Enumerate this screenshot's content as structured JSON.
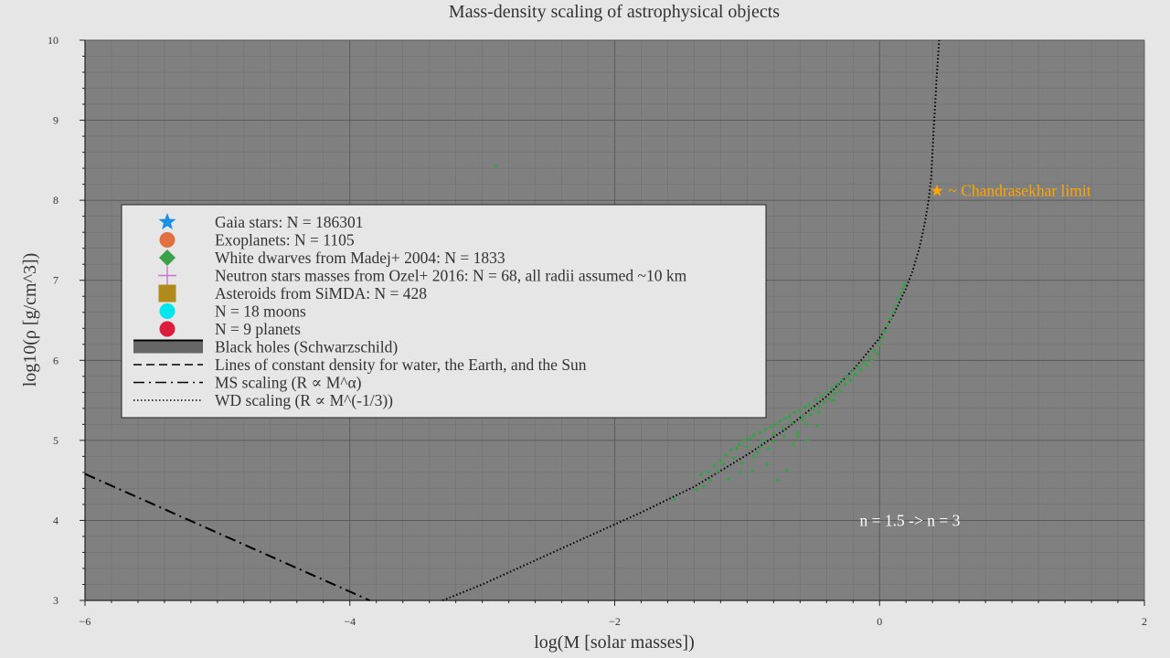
{
  "chart_data": {
    "type": "scatter",
    "title": "Mass-density scaling of astrophysical objects",
    "xlabel": "log(M [solar masses])",
    "ylabel": "log10(ρ [g/cm^3])",
    "xlim": [
      -6,
      2
    ],
    "ylim": [
      3,
      10
    ],
    "xscale": "linear",
    "yscale": "linear",
    "grid": true,
    "xticks": [
      -6,
      -4,
      -2,
      0,
      2
    ],
    "yticks": [
      3,
      4,
      5,
      6,
      7,
      8,
      9,
      10
    ],
    "legend_position": "center-left",
    "legend": [
      {
        "label": "Gaia stars: N = 186301",
        "marker": "star",
        "color": "#1b8fe6"
      },
      {
        "label": "Exoplanets: N = 1105",
        "marker": "circle",
        "color": "#e07040"
      },
      {
        "label": "White dwarves from Madej+ 2004: N = 1833",
        "marker": "diamond",
        "color": "#3aa04a"
      },
      {
        "label": "Neutron stars masses from Ozel+ 2016: N = 68, all radii assumed ~10 km",
        "marker": "plus",
        "color": "#d070d0"
      },
      {
        "label": "Asteroids from SiMDA: N = 428",
        "marker": "square",
        "color": "#b08a1a"
      },
      {
        "label": "N = 18 moons",
        "marker": "circle",
        "color": "#00e5ee"
      },
      {
        "label": "N = 9 planets",
        "marker": "circle",
        "color": "#dc1c3c"
      },
      {
        "label": "Black holes (Schwarzschild)",
        "marker": "thick-line",
        "color": "#666666"
      },
      {
        "label": "Lines of constant density for water, the Earth, and the Sun",
        "marker": "dashed-line",
        "color": "#000000"
      },
      {
        "label": "MS scaling (R ∝ M^α)",
        "marker": "dashdot-line",
        "color": "#000000"
      },
      {
        "label": "WD scaling (R ∝ M^(-1/3))",
        "marker": "dotted-line",
        "color": "#000000"
      }
    ],
    "series": [
      {
        "name": "MS scaling (R ∝ M^α)",
        "style": "dashdot",
        "color": "#000000",
        "x": [
          -6.0,
          -3.85
        ],
        "y": [
          4.58,
          3.0
        ]
      },
      {
        "name": "WD scaling (R ∝ M^(-1/3))",
        "style": "dotted",
        "color": "#000000",
        "x": [
          -3.3,
          -3.0,
          -2.6,
          -2.2,
          -1.8,
          -1.4,
          -1.0,
          -0.7,
          -0.4,
          -0.2,
          0.0,
          0.1,
          0.2,
          0.25,
          0.3,
          0.34,
          0.37,
          0.39,
          0.4,
          0.41,
          0.42,
          0.43,
          0.44,
          0.45
        ],
        "y": [
          3.0,
          3.2,
          3.5,
          3.8,
          4.1,
          4.42,
          4.82,
          5.15,
          5.55,
          5.88,
          6.28,
          6.55,
          6.9,
          7.12,
          7.4,
          7.7,
          8.0,
          8.3,
          8.6,
          8.9,
          9.2,
          9.5,
          9.75,
          10.0
        ]
      }
    ],
    "white_dwarfs": {
      "color": "#3aa04a",
      "points": [
        [
          -2.9,
          8.43
        ],
        [
          -1.55,
          4.26
        ],
        [
          -1.38,
          4.38
        ],
        [
          -1.35,
          4.57
        ],
        [
          -1.33,
          4.43
        ],
        [
          -1.3,
          4.6
        ],
        [
          -1.28,
          4.5
        ],
        [
          -1.25,
          4.68
        ],
        [
          -1.22,
          4.62
        ],
        [
          -1.2,
          4.75
        ],
        [
          -1.18,
          4.7
        ],
        [
          -1.16,
          4.82
        ],
        [
          -1.14,
          4.52
        ],
        [
          -1.12,
          4.88
        ],
        [
          -1.1,
          4.78
        ],
        [
          -1.08,
          4.9
        ],
        [
          -1.06,
          4.95
        ],
        [
          -1.04,
          4.72
        ],
        [
          -1.02,
          5.0
        ],
        [
          -1.0,
          4.92
        ],
        [
          -0.98,
          5.02
        ],
        [
          -0.96,
          4.62
        ],
        [
          -0.95,
          5.06
        ],
        [
          -0.92,
          4.85
        ],
        [
          -0.9,
          5.1
        ],
        [
          -0.88,
          5.0
        ],
        [
          -0.86,
          5.14
        ],
        [
          -0.84,
          4.9
        ],
        [
          -0.82,
          5.17
        ],
        [
          -0.8,
          5.08
        ],
        [
          -0.78,
          5.2
        ],
        [
          -0.77,
          4.5
        ],
        [
          -0.75,
          5.24
        ],
        [
          -0.73,
          5.15
        ],
        [
          -0.71,
          5.28
        ],
        [
          -0.7,
          4.62
        ],
        [
          -0.68,
          5.3
        ],
        [
          -0.66,
          5.22
        ],
        [
          -0.64,
          5.35
        ],
        [
          -0.62,
          5.1
        ],
        [
          -0.6,
          5.38
        ],
        [
          -0.58,
          5.3
        ],
        [
          -0.56,
          5.42
        ],
        [
          -0.55,
          5.2
        ],
        [
          -0.53,
          5.45
        ],
        [
          -0.5,
          5.4
        ],
        [
          -0.48,
          5.5
        ],
        [
          -0.46,
          5.35
        ],
        [
          -0.44,
          5.55
        ],
        [
          -0.42,
          5.48
        ],
        [
          -0.4,
          5.6
        ],
        [
          -0.38,
          5.52
        ],
        [
          -0.36,
          5.65
        ],
        [
          -0.34,
          5.58
        ],
        [
          -0.32,
          5.7
        ],
        [
          -0.3,
          5.62
        ],
        [
          -0.28,
          5.75
        ],
        [
          -0.26,
          5.7
        ],
        [
          -0.24,
          5.8
        ],
        [
          -0.22,
          5.75
        ],
        [
          -0.2,
          5.86
        ],
        [
          -0.18,
          5.82
        ],
        [
          -0.16,
          5.92
        ],
        [
          -0.14,
          5.88
        ],
        [
          -0.12,
          5.98
        ],
        [
          -0.1,
          5.94
        ],
        [
          -0.08,
          6.05
        ],
        [
          -0.06,
          6.0
        ],
        [
          -0.04,
          6.12
        ],
        [
          -0.02,
          6.08
        ],
        [
          0.0,
          6.2
        ],
        [
          0.02,
          6.28
        ],
        [
          0.04,
          6.36
        ],
        [
          0.06,
          6.44
        ],
        [
          0.08,
          6.52
        ],
        [
          0.1,
          6.6
        ],
        [
          0.12,
          6.68
        ],
        [
          0.14,
          6.76
        ],
        [
          0.16,
          6.84
        ],
        [
          0.18,
          6.9
        ],
        [
          0.19,
          6.95
        ],
        [
          -0.58,
          5.25
        ],
        [
          -0.62,
          5.05
        ],
        [
          -0.52,
          5.32
        ],
        [
          -0.45,
          5.42
        ],
        [
          -0.72,
          5.05
        ],
        [
          -0.8,
          4.98
        ],
        [
          -0.9,
          4.92
        ],
        [
          -1.05,
          4.6
        ],
        [
          -0.35,
          5.5
        ],
        [
          -0.65,
          4.95
        ],
        [
          -0.55,
          5.0
        ],
        [
          -0.47,
          5.18
        ],
        [
          -0.85,
          4.7
        ],
        [
          -0.95,
          4.8
        ]
      ]
    },
    "annotations": [
      {
        "text": "★ ~ Chandrasekhar limit",
        "x": 0.38,
        "y": 8.12,
        "color": "#ffa500"
      },
      {
        "text": "n = 1.5 -> n = 3",
        "x": -0.15,
        "y": 4.0,
        "color": "#ffffff"
      }
    ]
  }
}
